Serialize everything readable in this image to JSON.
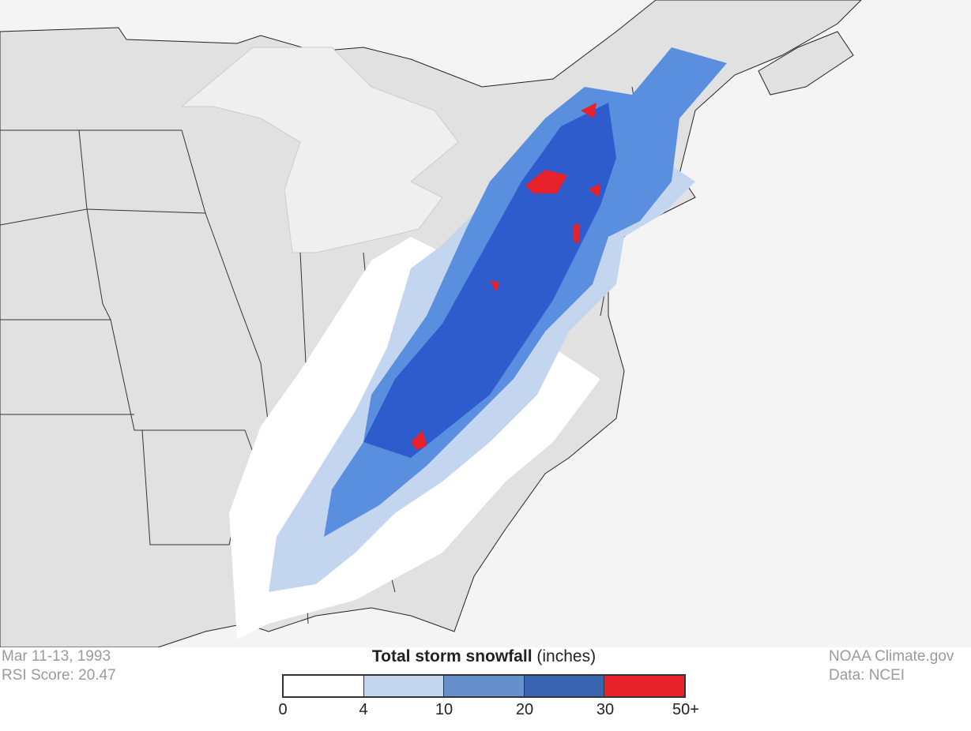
{
  "map": {
    "colors": {
      "ocean": "#f4f4f4",
      "land": "#e1e1e1",
      "lakes": "#efefef",
      "borders": "#222222"
    },
    "region": "Eastern United States"
  },
  "info": {
    "date": "Mar 11-13, 1993",
    "rsi": "RSI Score: 20.47"
  },
  "credits": {
    "source": "NOAA Climate.gov",
    "data": "Data: NCEI"
  },
  "legend": {
    "title_bold": "Total storm snowfall",
    "title_unit": "(inches)",
    "bins": [
      {
        "from": "0",
        "to": "4",
        "color": "#ffffff"
      },
      {
        "from": "4",
        "to": "10",
        "color": "#c4d6ef"
      },
      {
        "from": "10",
        "to": "20",
        "color": "#6690cc"
      },
      {
        "from": "20",
        "to": "30",
        "color": "#3a63b0"
      },
      {
        "from": "30",
        "to": "50+",
        "color": "#e8222a"
      }
    ],
    "ticks": [
      "0",
      "4",
      "10",
      "20",
      "30",
      "50+"
    ]
  }
}
